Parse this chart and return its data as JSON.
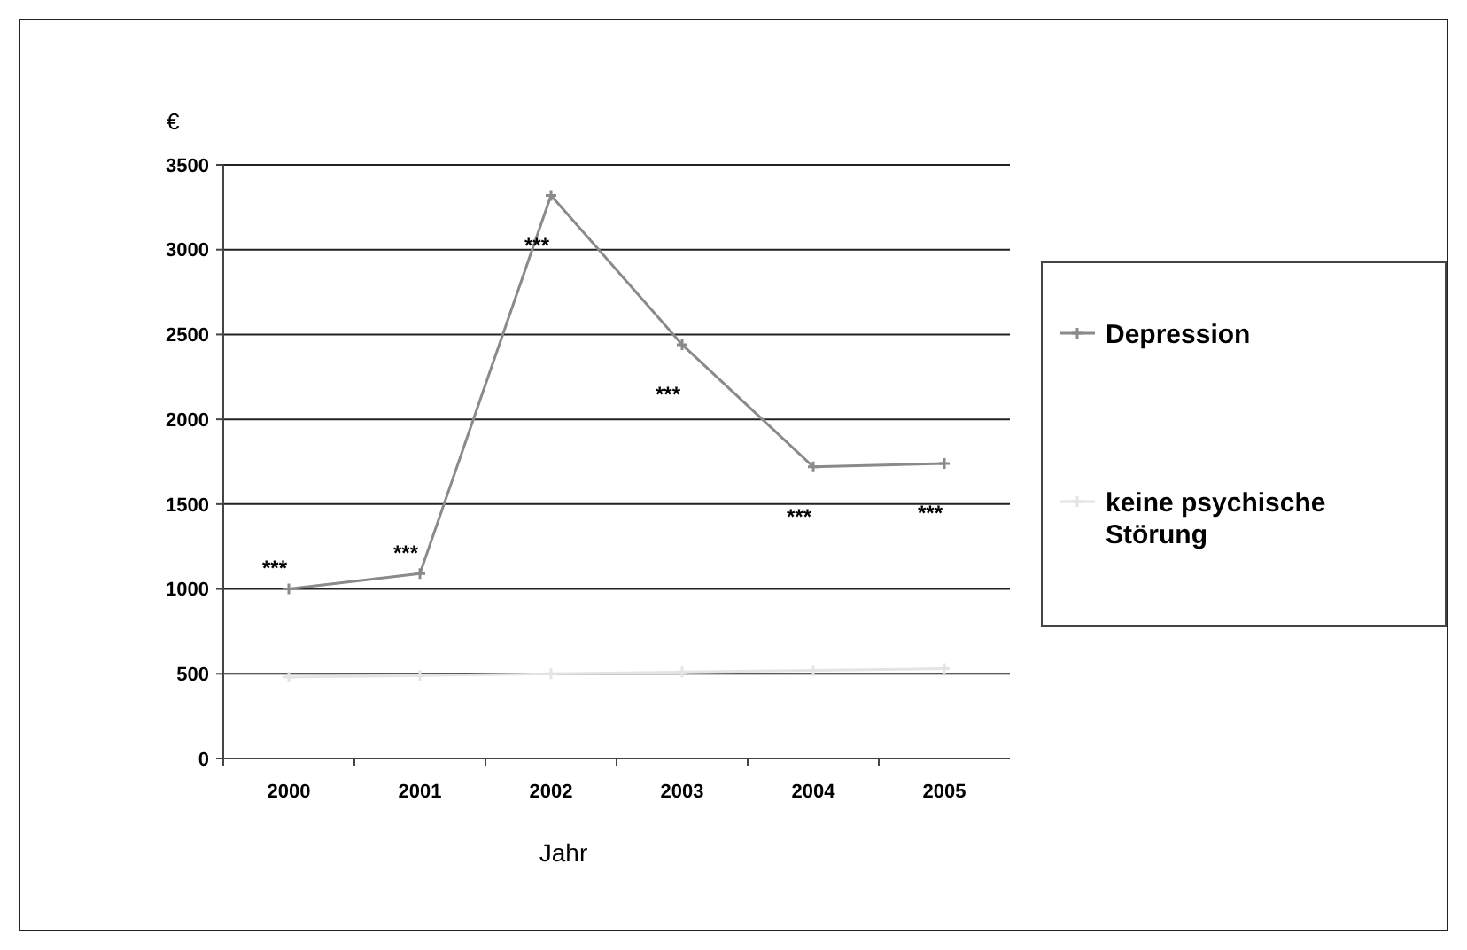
{
  "chart_data": {
    "type": "line",
    "ylabel": "€",
    "xlabel": "Jahr",
    "categories": [
      "2000",
      "2001",
      "2002",
      "2003",
      "2004",
      "2005"
    ],
    "series": [
      {
        "name": "Depression",
        "color": "#8a8a8a",
        "values": [
          1000,
          1090,
          3320,
          2440,
          1720,
          1740
        ]
      },
      {
        "name": "keine psychische Störung",
        "color": "#e4e4e4",
        "values": [
          480,
          490,
          500,
          510,
          520,
          530
        ]
      }
    ],
    "ylim": [
      0,
      3500
    ],
    "yticks": [
      0,
      500,
      1000,
      1500,
      2000,
      2500,
      3000,
      3500
    ],
    "grid": "y",
    "legend": "right",
    "marker": "cross",
    "line_style": "solid",
    "annotations": [
      "***",
      "***",
      "***",
      "***",
      "***",
      "***"
    ]
  }
}
